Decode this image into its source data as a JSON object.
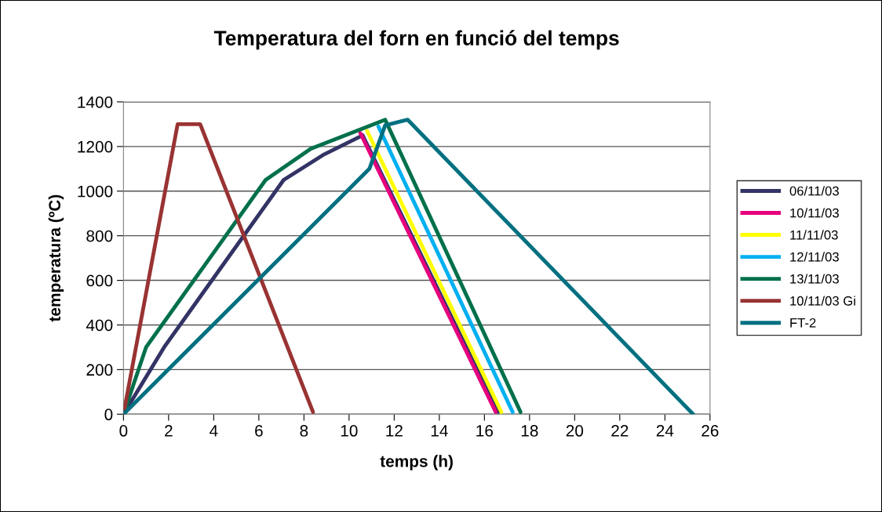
{
  "chart_data": {
    "type": "line",
    "title": "Temperatura del forn en funció del temps",
    "xlabel": "temps (h)",
    "ylabel": "temperatura (ºC)",
    "xlim": [
      0,
      26
    ],
    "xticks": [
      0,
      2,
      4,
      6,
      8,
      10,
      12,
      14,
      16,
      18,
      20,
      22,
      24,
      26
    ],
    "ylim": [
      0,
      1400
    ],
    "yticks": [
      0,
      200,
      400,
      600,
      800,
      1000,
      1200,
      1400
    ],
    "grid": "y",
    "legend": "right",
    "marker": "none",
    "line_style": "solid",
    "series": [
      {
        "name": "06/11/03",
        "color": "#333366",
        "x": [
          0,
          1.8,
          7.1,
          8.9,
          10.6,
          16.6
        ],
        "values": [
          0,
          300,
          1050,
          1165,
          1250,
          10
        ]
      },
      {
        "name": "10/11/03",
        "color": "#e6007e",
        "x": [
          10.5,
          16.5
        ],
        "values": [
          1260,
          10
        ]
      },
      {
        "name": "11/11/03",
        "color": "#ffff00",
        "x": [
          10.8,
          16.75
        ],
        "values": [
          1270,
          10
        ]
      },
      {
        "name": "12/11/03",
        "color": "#00b0f0",
        "x": [
          11.3,
          17.25
        ],
        "values": [
          1290,
          10
        ]
      },
      {
        "name": "13/11/03",
        "color": "#00704a",
        "x": [
          0,
          1,
          6.3,
          8.3,
          11.6,
          17.6
        ],
        "values": [
          0,
          300,
          1050,
          1190,
          1320,
          10
        ]
      },
      {
        "name": "10/11/03 Gi",
        "color": "#993333",
        "x": [
          0,
          2.4,
          3.4,
          8.4
        ],
        "values": [
          0,
          1300,
          1300,
          10
        ]
      },
      {
        "name": "FT-2",
        "color": "#007080",
        "x": [
          0,
          10.9,
          11.6,
          12.6,
          25.25
        ],
        "values": [
          0,
          1100,
          1295,
          1320,
          0
        ]
      }
    ]
  }
}
